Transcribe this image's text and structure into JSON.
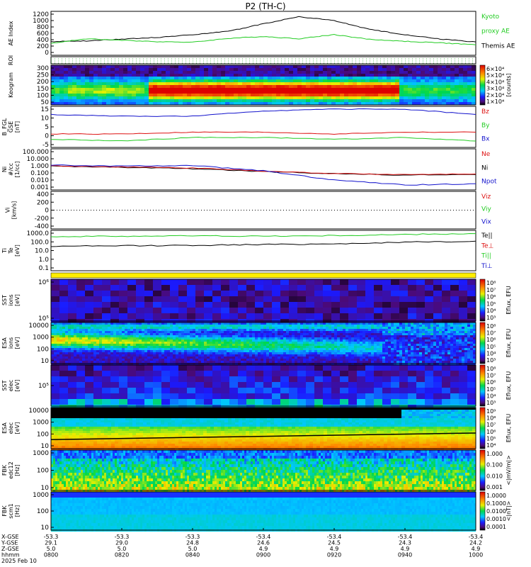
{
  "title": "P2 (TH-C)",
  "colors": {
    "black": "#000000",
    "green": "#22cc22",
    "red": "#dd1111",
    "blue": "#1111cc",
    "yellow": "#ffee00"
  },
  "panels": [
    {
      "id": "ae",
      "ylabel": "AE Index",
      "ticks": [
        "1200",
        "1000",
        "800",
        "600",
        "400",
        "200",
        "0"
      ],
      "legend": [
        {
          "text": "Kyoto",
          "color": "green"
        },
        {
          "text": "proxy AE",
          "color": "green"
        },
        {
          "text": "Themis AE",
          "color": "black"
        }
      ]
    },
    {
      "id": "roi",
      "ylabel": "ROI",
      "ticks": [],
      "legend": []
    },
    {
      "id": "keogram",
      "ylabel": "Keogram",
      "ticks": [
        "300",
        "250",
        "200",
        "150",
        "100",
        "50"
      ],
      "legend": [],
      "colorbar": {
        "ticks": [
          "6×10⁴",
          "5×10⁴",
          "4×10⁴",
          "3×10⁴",
          "2×10⁴",
          "1×10⁴"
        ],
        "unit": "[counts]"
      }
    },
    {
      "id": "bfield",
      "ylabel": "B_FGL\nGSE\n[nT]",
      "ticks": [
        "15",
        "10",
        "5",
        "0",
        "-5"
      ],
      "legend": [
        {
          "text": "Bz",
          "color": "red"
        },
        {
          "text": "By",
          "color": "green"
        },
        {
          "text": "Bx",
          "color": "blue"
        }
      ]
    },
    {
      "id": "density",
      "ylabel": "Ni\n#/cc\n[1/cc]",
      "ticks": [
        "100.000",
        "10.000",
        "1.000",
        "0.100",
        "0.010",
        "0.001"
      ],
      "legend": [
        {
          "text": "Ne",
          "color": "red"
        },
        {
          "text": "Ni",
          "color": "black"
        },
        {
          "text": "Npot",
          "color": "blue"
        }
      ]
    },
    {
      "id": "velocity",
      "ylabel": "Vi\n[km/s]",
      "ticks": [
        "400",
        "200",
        "0",
        "-200",
        "-400"
      ],
      "legend": [
        {
          "text": "Viz",
          "color": "red"
        },
        {
          "text": "Viy",
          "color": "green"
        },
        {
          "text": "Vix",
          "color": "blue"
        }
      ]
    },
    {
      "id": "temperature",
      "ylabel": "Ti\nTe\n[eV]",
      "ticks": [
        "1000.0",
        "100.0",
        "10.0",
        "1.0",
        "0.1"
      ],
      "legend": [
        {
          "text": "Te||",
          "color": "black"
        },
        {
          "text": "Te⊥",
          "color": "red"
        },
        {
          "text": "Ti||",
          "color": "green"
        },
        {
          "text": "Ti⊥",
          "color": "blue"
        }
      ]
    },
    {
      "id": "sst_ion",
      "ylabel": "SST\nions\n[eV]",
      "ticks": [
        "10⁶",
        "10⁵"
      ],
      "legend": [],
      "colorbar": {
        "ticks": [
          "10⁸",
          "10⁷",
          "10⁶",
          "10⁵",
          "10⁴",
          "10³"
        ],
        "unit": "Eflux, EFU"
      }
    },
    {
      "id": "esa_ion",
      "ylabel": "ESA\nions\n[eV]",
      "ticks": [
        "10000",
        "1000",
        "100",
        "10"
      ],
      "legend": [],
      "colorbar": {
        "ticks": [
          "10⁸",
          "10⁷",
          "10⁶",
          "10⁵",
          "10⁴",
          "10³"
        ],
        "unit": "Eflux, EFU"
      }
    },
    {
      "id": "sst_elec",
      "ylabel": "SST\nelec\n[eV]",
      "ticks": [
        "10⁵"
      ],
      "legend": [],
      "colorbar": {
        "ticks": [
          "10⁸",
          "10⁷",
          "10⁶",
          "10⁵",
          "10⁴",
          "10³"
        ],
        "unit": "Eflux, EFU"
      }
    },
    {
      "id": "esa_elec",
      "ylabel": "ESA\nelec\n[eV]",
      "ticks": [
        "10000",
        "1000",
        "100",
        "10"
      ],
      "legend": [],
      "colorbar": {
        "ticks": [
          "10⁹",
          "10⁸",
          "10⁷",
          "10⁶",
          "10⁵",
          "10⁴"
        ],
        "unit": "Eflux, EFU"
      }
    },
    {
      "id": "fbk_e",
      "ylabel": "FBK\nedc12\n[Hz]",
      "ticks": [
        "1000",
        "100",
        "10"
      ],
      "legend": [],
      "colorbar": {
        "ticks": [
          "1.000",
          "0.100",
          "0.010",
          "0.001"
        ],
        "unit": "<|mV/m|>"
      }
    },
    {
      "id": "fbk_b",
      "ylabel": "FBK\nscm1\n[Hz]",
      "ticks": [
        "1000",
        "100",
        "10"
      ],
      "legend": [],
      "colorbar": {
        "ticks": [
          "1.0000",
          "0.1000",
          "0.0100",
          "0.0010",
          "0.0001"
        ],
        "unit": "<|nT|>"
      }
    }
  ],
  "xaxis": {
    "row_labels": [
      "X-GSE",
      "Y-GSE",
      "Z-GSE",
      "hhmm",
      "2025 Feb 10"
    ],
    "columns": [
      [
        "-53.3",
        "29.1",
        "5.0",
        "0800"
      ],
      [
        "-53.3",
        "29.0",
        "5.0",
        "0820"
      ],
      [
        "-53.3",
        "24.8",
        "5.0",
        "0840"
      ],
      [
        "-53.4",
        "24.6",
        "4.9",
        "0900"
      ],
      [
        "-53.4",
        "24.5",
        "4.9",
        "0920"
      ],
      [
        "-53.4",
        "24.3",
        "4.9",
        "0940"
      ],
      [
        "-53.4",
        "24.2",
        "4.9",
        "1000"
      ]
    ]
  },
  "chart_data": [
    {
      "type": "line",
      "title": "AE Index",
      "ylim": [
        0,
        1200
      ],
      "x_hhmm": [
        "0800",
        "0810",
        "0820",
        "0830",
        "0840",
        "0850",
        "0900",
        "0910",
        "0920",
        "0930",
        "0940",
        "0950",
        "1000"
      ],
      "series": [
        {
          "name": "Themis AE",
          "color": "black",
          "values": [
            340,
            360,
            420,
            470,
            560,
            660,
            900,
            1120,
            1000,
            720,
            560,
            420,
            330
          ]
        },
        {
          "name": "Kyoto proxy AE",
          "color": "green",
          "values": [
            280,
            430,
            380,
            340,
            320,
            440,
            500,
            430,
            560,
            410,
            350,
            300,
            240
          ]
        }
      ]
    },
    {
      "type": "line",
      "title": "B_FGL GSE",
      "ylim": [
        -5,
        15
      ],
      "x_hhmm": [
        "0800",
        "0820",
        "0840",
        "0900",
        "0920",
        "0940",
        "1000"
      ],
      "series": [
        {
          "name": "Bz",
          "color": "red",
          "values": [
            1,
            1,
            2,
            2,
            1,
            2,
            2
          ]
        },
        {
          "name": "By",
          "color": "green",
          "values": [
            -2,
            -3,
            -1,
            -1,
            -2,
            -1,
            -3
          ]
        },
        {
          "name": "Bx",
          "color": "blue",
          "values": [
            12,
            11,
            11,
            14,
            15,
            15,
            12
          ]
        }
      ]
    },
    {
      "type": "line",
      "title": "Ni",
      "ylim": [
        0.001,
        100
      ],
      "yscale": "log",
      "x_hhmm": [
        "0800",
        "0820",
        "0840",
        "0900",
        "0920",
        "0940",
        "1000"
      ],
      "series": [
        {
          "name": "Ni",
          "color": "black",
          "values": [
            0.9,
            0.6,
            0.4,
            0.15,
            0.08,
            0.05,
            0.06
          ]
        },
        {
          "name": "Ne",
          "color": "red",
          "values": [
            1.0,
            0.7,
            0.5,
            0.18,
            0.08,
            0.06,
            0.07
          ]
        },
        {
          "name": "Npot",
          "color": "blue",
          "values": [
            1.3,
            0.9,
            1.1,
            0.2,
            0.01,
            0.002,
            0.003
          ]
        }
      ]
    },
    {
      "type": "line",
      "title": "Ti Te",
      "ylim": [
        0.1,
        1000
      ],
      "yscale": "log",
      "x_hhmm": [
        "0800",
        "0820",
        "0840",
        "0900",
        "0920",
        "0940",
        "1000"
      ],
      "series": [
        {
          "name": "Ti||",
          "color": "green",
          "values": [
            400,
            450,
            500,
            450,
            520,
            700,
            900
          ]
        },
        {
          "name": "Te||",
          "color": "black",
          "values": [
            30,
            35,
            40,
            50,
            60,
            90,
            120
          ]
        }
      ]
    },
    {
      "type": "heatmap",
      "title": "Keogram",
      "ylim": [
        50,
        300
      ],
      "zunit": "counts"
    }
  ]
}
